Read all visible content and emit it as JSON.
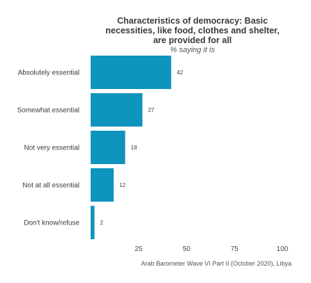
{
  "chart_data": {
    "type": "bar",
    "orientation": "horizontal",
    "title": [
      "Characteristics of democracy: Basic",
      "necessities, like food, clothes and shelter,",
      "are provided for all"
    ],
    "subtitle": "% saying it is",
    "categories": [
      "Absolutely essential",
      "Somewhat essential",
      "Not very essential",
      "Not at all essential",
      "Don't know/refuse"
    ],
    "values": [
      42,
      27,
      18,
      12,
      2
    ],
    "value_labels": [
      "42",
      "27",
      "18",
      "12",
      "2"
    ],
    "xlim": [
      0,
      100
    ],
    "xticks": [
      25,
      50,
      75,
      100
    ],
    "tick_labels": [
      "25",
      "50",
      "75",
      "100"
    ],
    "grid": false,
    "legend": "none",
    "bar_color": "#0e94bd",
    "caption": "Arab Barometer Wave VI Part II (October 2020), Libya"
  }
}
